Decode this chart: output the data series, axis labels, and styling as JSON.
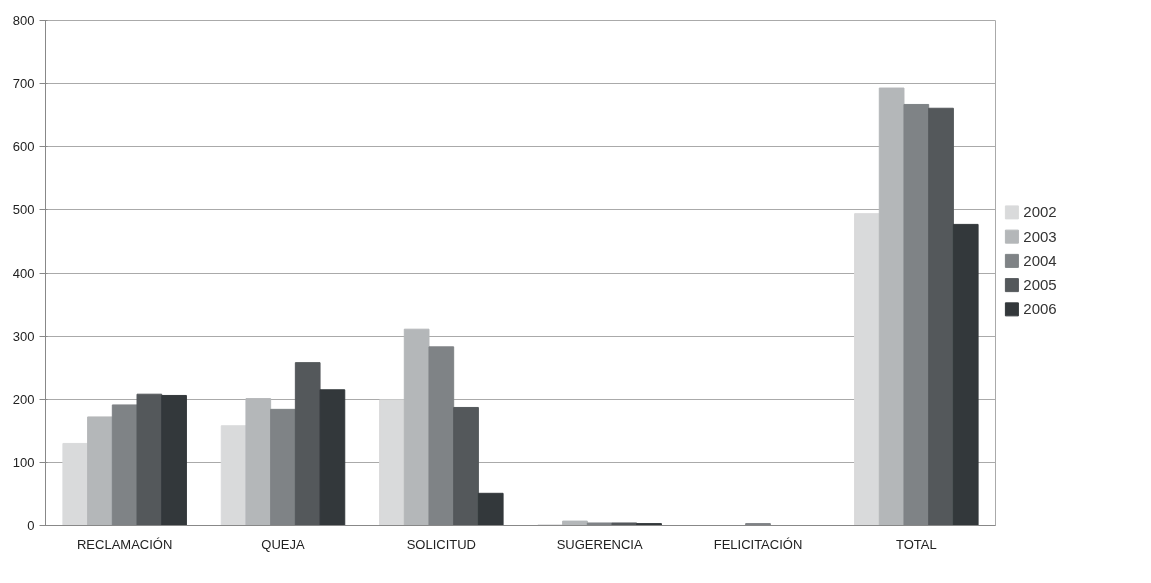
{
  "chart_data": {
    "type": "bar",
    "categories": [
      "RECLAMACIÓN",
      "QUEJA",
      "SOLICITUD",
      "SUGERENCIA",
      "FELICITACIÓN",
      "TOTAL"
    ],
    "series": [
      {
        "name": "2002",
        "color": "#d9dadb",
        "values": [
          130,
          158,
          199,
          1,
          0,
          494
        ]
      },
      {
        "name": "2003",
        "color": "#b4b7b9",
        "values": [
          172,
          201,
          311,
          7,
          0,
          693
        ]
      },
      {
        "name": "2004",
        "color": "#7f8386",
        "values": [
          191,
          184,
          283,
          4,
          3,
          667
        ]
      },
      {
        "name": "2005",
        "color": "#54585b",
        "values": [
          208,
          258,
          187,
          4,
          0,
          661
        ]
      },
      {
        "name": "2006",
        "color": "#33383b",
        "values": [
          206,
          215,
          51,
          3,
          0,
          477
        ]
      }
    ],
    "ylim": [
      0,
      800
    ],
    "yticks": [
      0,
      100,
      200,
      300,
      400,
      500,
      600,
      700,
      800
    ],
    "grid": "y",
    "legend": "right"
  }
}
